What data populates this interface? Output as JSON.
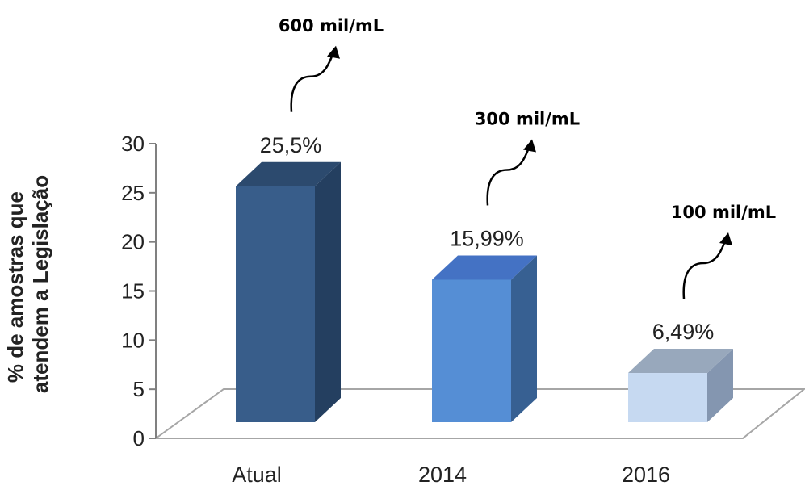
{
  "chart_data": {
    "type": "bar",
    "categories": [
      "Atual",
      "2014",
      "2016"
    ],
    "values": [
      25.5,
      15.99,
      6.49
    ],
    "value_labels": [
      "25,5%",
      "15,99%",
      "6,49%"
    ],
    "annotations": [
      "600 mil/mL",
      "300 mil/mL",
      "100 mil/mL"
    ],
    "ylabel_lines": [
      "% de amostras que",
      "atendem a Legislação"
    ],
    "xlabel": "",
    "ylim": [
      0,
      30
    ],
    "yticks": [
      "0",
      "5",
      "10",
      "15",
      "20",
      "25",
      "30"
    ],
    "grid": false,
    "legend": "none",
    "colors": {
      "bars_front": [
        "#385D8A",
        "#558ED5",
        "#C6D9F1"
      ],
      "bars_side": [
        "#243F60",
        "#376092",
        "#8496B0"
      ],
      "bars_top": [
        "#2C4A6E",
        "#4472C4",
        "#98A8BC"
      ],
      "floor": "#FFFFFF",
      "floor_edge": "#A6A6A6",
      "axis": "#808080"
    }
  }
}
